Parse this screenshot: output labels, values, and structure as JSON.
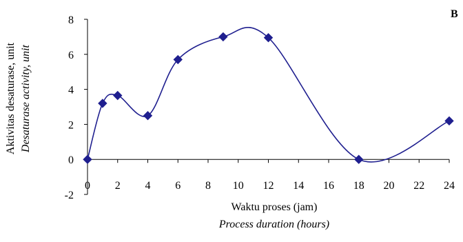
{
  "panel_label": "B",
  "chart_data": {
    "type": "line",
    "xlabel": "Waktu proses (jam)",
    "xlabel_secondary": "Process duration (hours)",
    "ylabel": "Aktivitas desaturase, unit",
    "ylabel_secondary": "Desaturase activity, unit",
    "xlim": [
      0,
      24
    ],
    "ylim": [
      -2,
      8
    ],
    "x_ticks": [
      "0",
      "2",
      "4",
      "6",
      "8",
      "10",
      "12",
      "14",
      "16",
      "18",
      "20",
      "22",
      "24"
    ],
    "y_ticks": [
      "-2",
      "0",
      "2",
      "4",
      "6",
      "8"
    ],
    "grid": false,
    "legend": "none",
    "smoothed": true,
    "marker": "diamond",
    "line_color": "#1f1f8f",
    "marker_color": "#1f1f8f",
    "series": [
      {
        "x": [
          0,
          1,
          2,
          4,
          6,
          9,
          12,
          18,
          24
        ],
        "y": [
          0,
          3.2,
          3.65,
          2.5,
          5.7,
          7.0,
          6.95,
          0,
          2.2
        ]
      }
    ]
  }
}
